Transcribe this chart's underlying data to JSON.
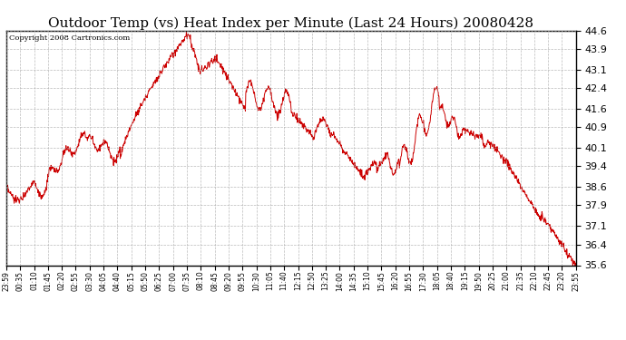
{
  "title": "Outdoor Temp (vs) Heat Index per Minute (Last 24 Hours) 20080428",
  "copyright": "Copyright 2008 Cartronics.com",
  "line_color": "#cc0000",
  "bg_color": "#ffffff",
  "plot_bg_color": "#ffffff",
  "grid_color": "#aaaaaa",
  "yticks": [
    35.6,
    36.4,
    37.1,
    37.9,
    38.6,
    39.4,
    40.1,
    40.9,
    41.6,
    42.4,
    43.1,
    43.9,
    44.6
  ],
  "ylim": [
    35.6,
    44.6
  ],
  "xtick_labels": [
    "23:59",
    "00:35",
    "01:10",
    "01:45",
    "02:20",
    "02:55",
    "03:30",
    "04:05",
    "04:40",
    "05:15",
    "05:50",
    "06:25",
    "07:00",
    "07:35",
    "08:10",
    "08:45",
    "09:20",
    "09:55",
    "10:30",
    "11:05",
    "11:40",
    "12:15",
    "12:50",
    "13:25",
    "14:00",
    "14:35",
    "15:10",
    "15:45",
    "16:20",
    "16:55",
    "17:30",
    "18:05",
    "18:40",
    "19:15",
    "19:50",
    "20:25",
    "21:00",
    "21:35",
    "22:10",
    "22:45",
    "23:20",
    "23:55"
  ],
  "title_fontsize": 11,
  "copyright_fontsize": 6,
  "ytick_fontsize": 8,
  "xtick_fontsize": 5.5,
  "figsize": [
    6.9,
    3.75
  ],
  "dpi": 100
}
